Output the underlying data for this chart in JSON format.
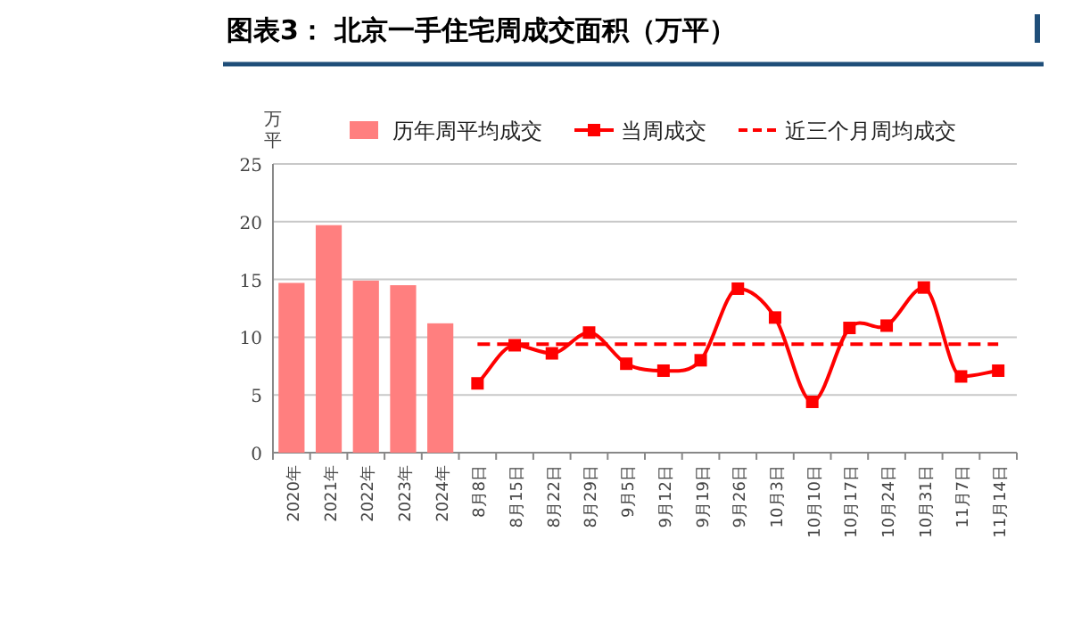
{
  "chart_data": {
    "type": "bar",
    "title": "图表3：  北京一手住宅周成交面积（万平）",
    "ylabel": "万平",
    "categories": [
      "2020年",
      "2021年",
      "2022年",
      "2023年",
      "2024年",
      "8月8日",
      "8月15日",
      "8月22日",
      "8月29日",
      "9月5日",
      "9月12日",
      "9月19日",
      "9月26日",
      "10月3日",
      "10月10日",
      "10月17日",
      "10月24日",
      "10月31日",
      "11月7日",
      "11月14日"
    ],
    "series": [
      {
        "name": "历年周平均成交",
        "color": "#ff7f7f",
        "values": [
          14.7,
          19.7,
          14.9,
          14.5,
          11.2,
          null,
          null,
          null,
          null,
          null,
          null,
          null,
          null,
          null,
          null,
          null,
          null,
          null,
          null,
          null
        ]
      },
      {
        "name": "当周成交",
        "type": "line",
        "color": "#ff0000",
        "marker": "square",
        "line_style": "solid",
        "values": [
          null,
          null,
          null,
          null,
          null,
          6.0,
          9.3,
          8.6,
          10.4,
          7.7,
          7.1,
          8.0,
          14.2,
          11.7,
          4.4,
          10.8,
          11.0,
          14.3,
          6.6,
          7.1
        ]
      },
      {
        "name": "近三个月周均成交",
        "type": "line",
        "color": "#ff0000",
        "marker": "none",
        "line_style": "dashed",
        "values": [
          null,
          null,
          null,
          null,
          null,
          9.4,
          9.4,
          9.4,
          9.4,
          9.4,
          9.4,
          9.4,
          9.4,
          9.4,
          9.4,
          9.4,
          9.4,
          9.4,
          9.4,
          9.4
        ]
      }
    ],
    "ylim": [
      0,
      25
    ],
    "yticks": [
      0,
      5,
      10,
      15,
      20,
      25
    ],
    "grid": "y",
    "legend": "top"
  }
}
